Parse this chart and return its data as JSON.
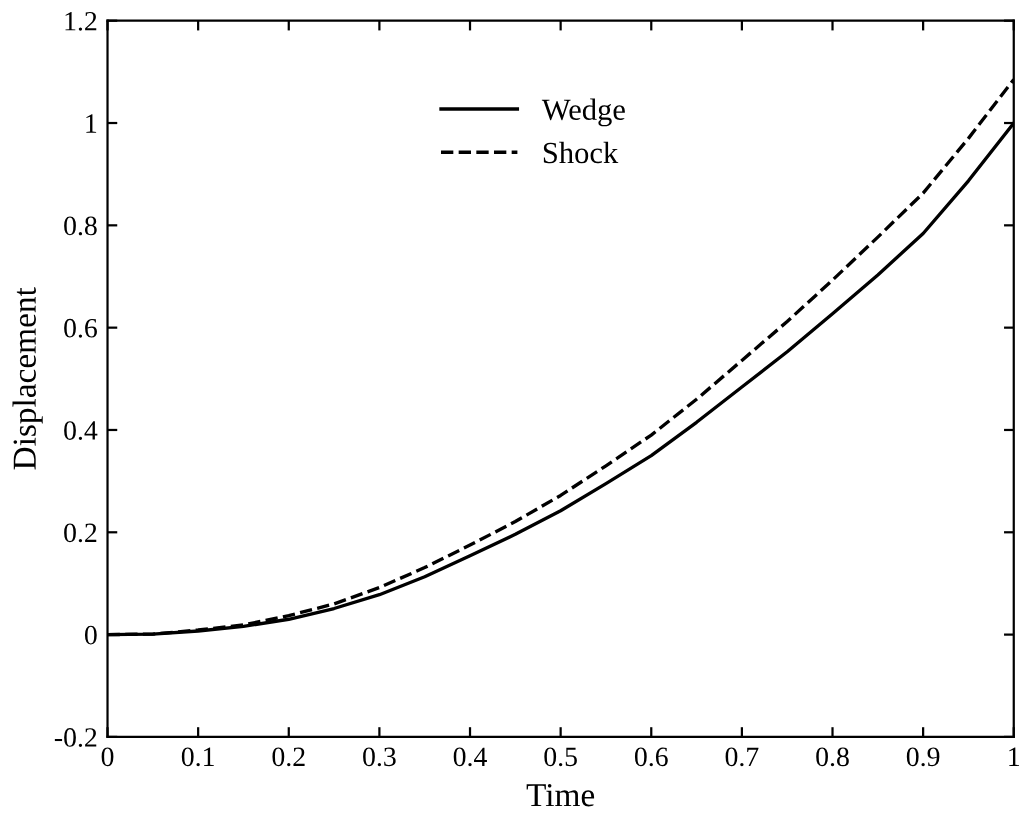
{
  "chart_data": {
    "type": "line",
    "xlabel": "Time",
    "ylabel": "Displacement",
    "x": [
      0,
      0.05,
      0.1,
      0.15,
      0.2,
      0.25,
      0.3,
      0.35,
      0.4,
      0.45,
      0.5,
      0.55,
      0.6,
      0.65,
      0.7,
      0.75,
      0.8,
      0.85,
      0.9,
      0.95,
      1
    ],
    "series": [
      {
        "name": "Wedge",
        "color": "#000000",
        "line_style": "solid",
        "values": [
          0,
          0.001,
          0.007,
          0.016,
          0.03,
          0.051,
          0.078,
          0.113,
          0.154,
          0.196,
          0.242,
          0.295,
          0.35,
          0.415,
          0.484,
          0.553,
          0.627,
          0.703,
          0.784,
          0.887,
          1.0
        ]
      },
      {
        "name": "Shock",
        "color": "#000000",
        "line_style": "dashed",
        "values": [
          0,
          0.001,
          0.009,
          0.019,
          0.037,
          0.06,
          0.092,
          0.131,
          0.175,
          0.221,
          0.272,
          0.33,
          0.39,
          0.46,
          0.536,
          0.612,
          0.693,
          0.777,
          0.863,
          0.97,
          1.085
        ]
      }
    ],
    "xlim": [
      0,
      1
    ],
    "ylim": [
      -0.2,
      1.2
    ],
    "xticks": [
      0,
      0.1,
      0.2,
      0.3,
      0.4,
      0.5,
      0.6,
      0.7,
      0.8,
      0.9,
      1
    ],
    "yticks": [
      -0.2,
      0,
      0.2,
      0.4,
      0.6,
      0.8,
      1,
      1.2
    ],
    "legend": "top",
    "grid": false,
    "marker": "none"
  }
}
